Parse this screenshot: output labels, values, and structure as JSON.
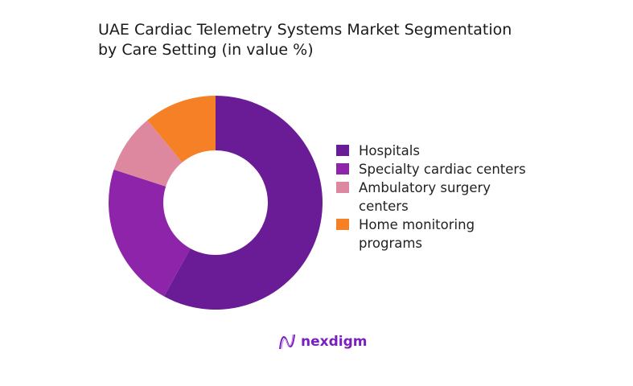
{
  "chart_data": {
    "type": "pie",
    "title": "UAE Cardiac Telemetry Systems Market Segmentation by Care Setting (in value %)",
    "title_lines": [
      "UAE Cardiac Telemetry Systems Market Segmentation",
      "by Care Setting (in value %)"
    ],
    "categories": [
      "Hospitals",
      "Specialty cardiac centers",
      "Ambulatory surgery centers",
      "Home monitoring programs"
    ],
    "values": [
      58,
      22,
      9,
      11
    ],
    "colors": [
      "#6a1b96",
      "#8e24aa",
      "#de889f",
      "#f58025"
    ],
    "donut": true,
    "legend_position": "right"
  },
  "legend_lines": [
    [
      "Hospitals"
    ],
    [
      "Specialty cardiac centers"
    ],
    [
      "Ambulatory surgery",
      "centers"
    ],
    [
      "Home monitoring",
      "programs"
    ]
  ],
  "brand": {
    "name": "nexdigm",
    "color": "#7a1fbf"
  }
}
